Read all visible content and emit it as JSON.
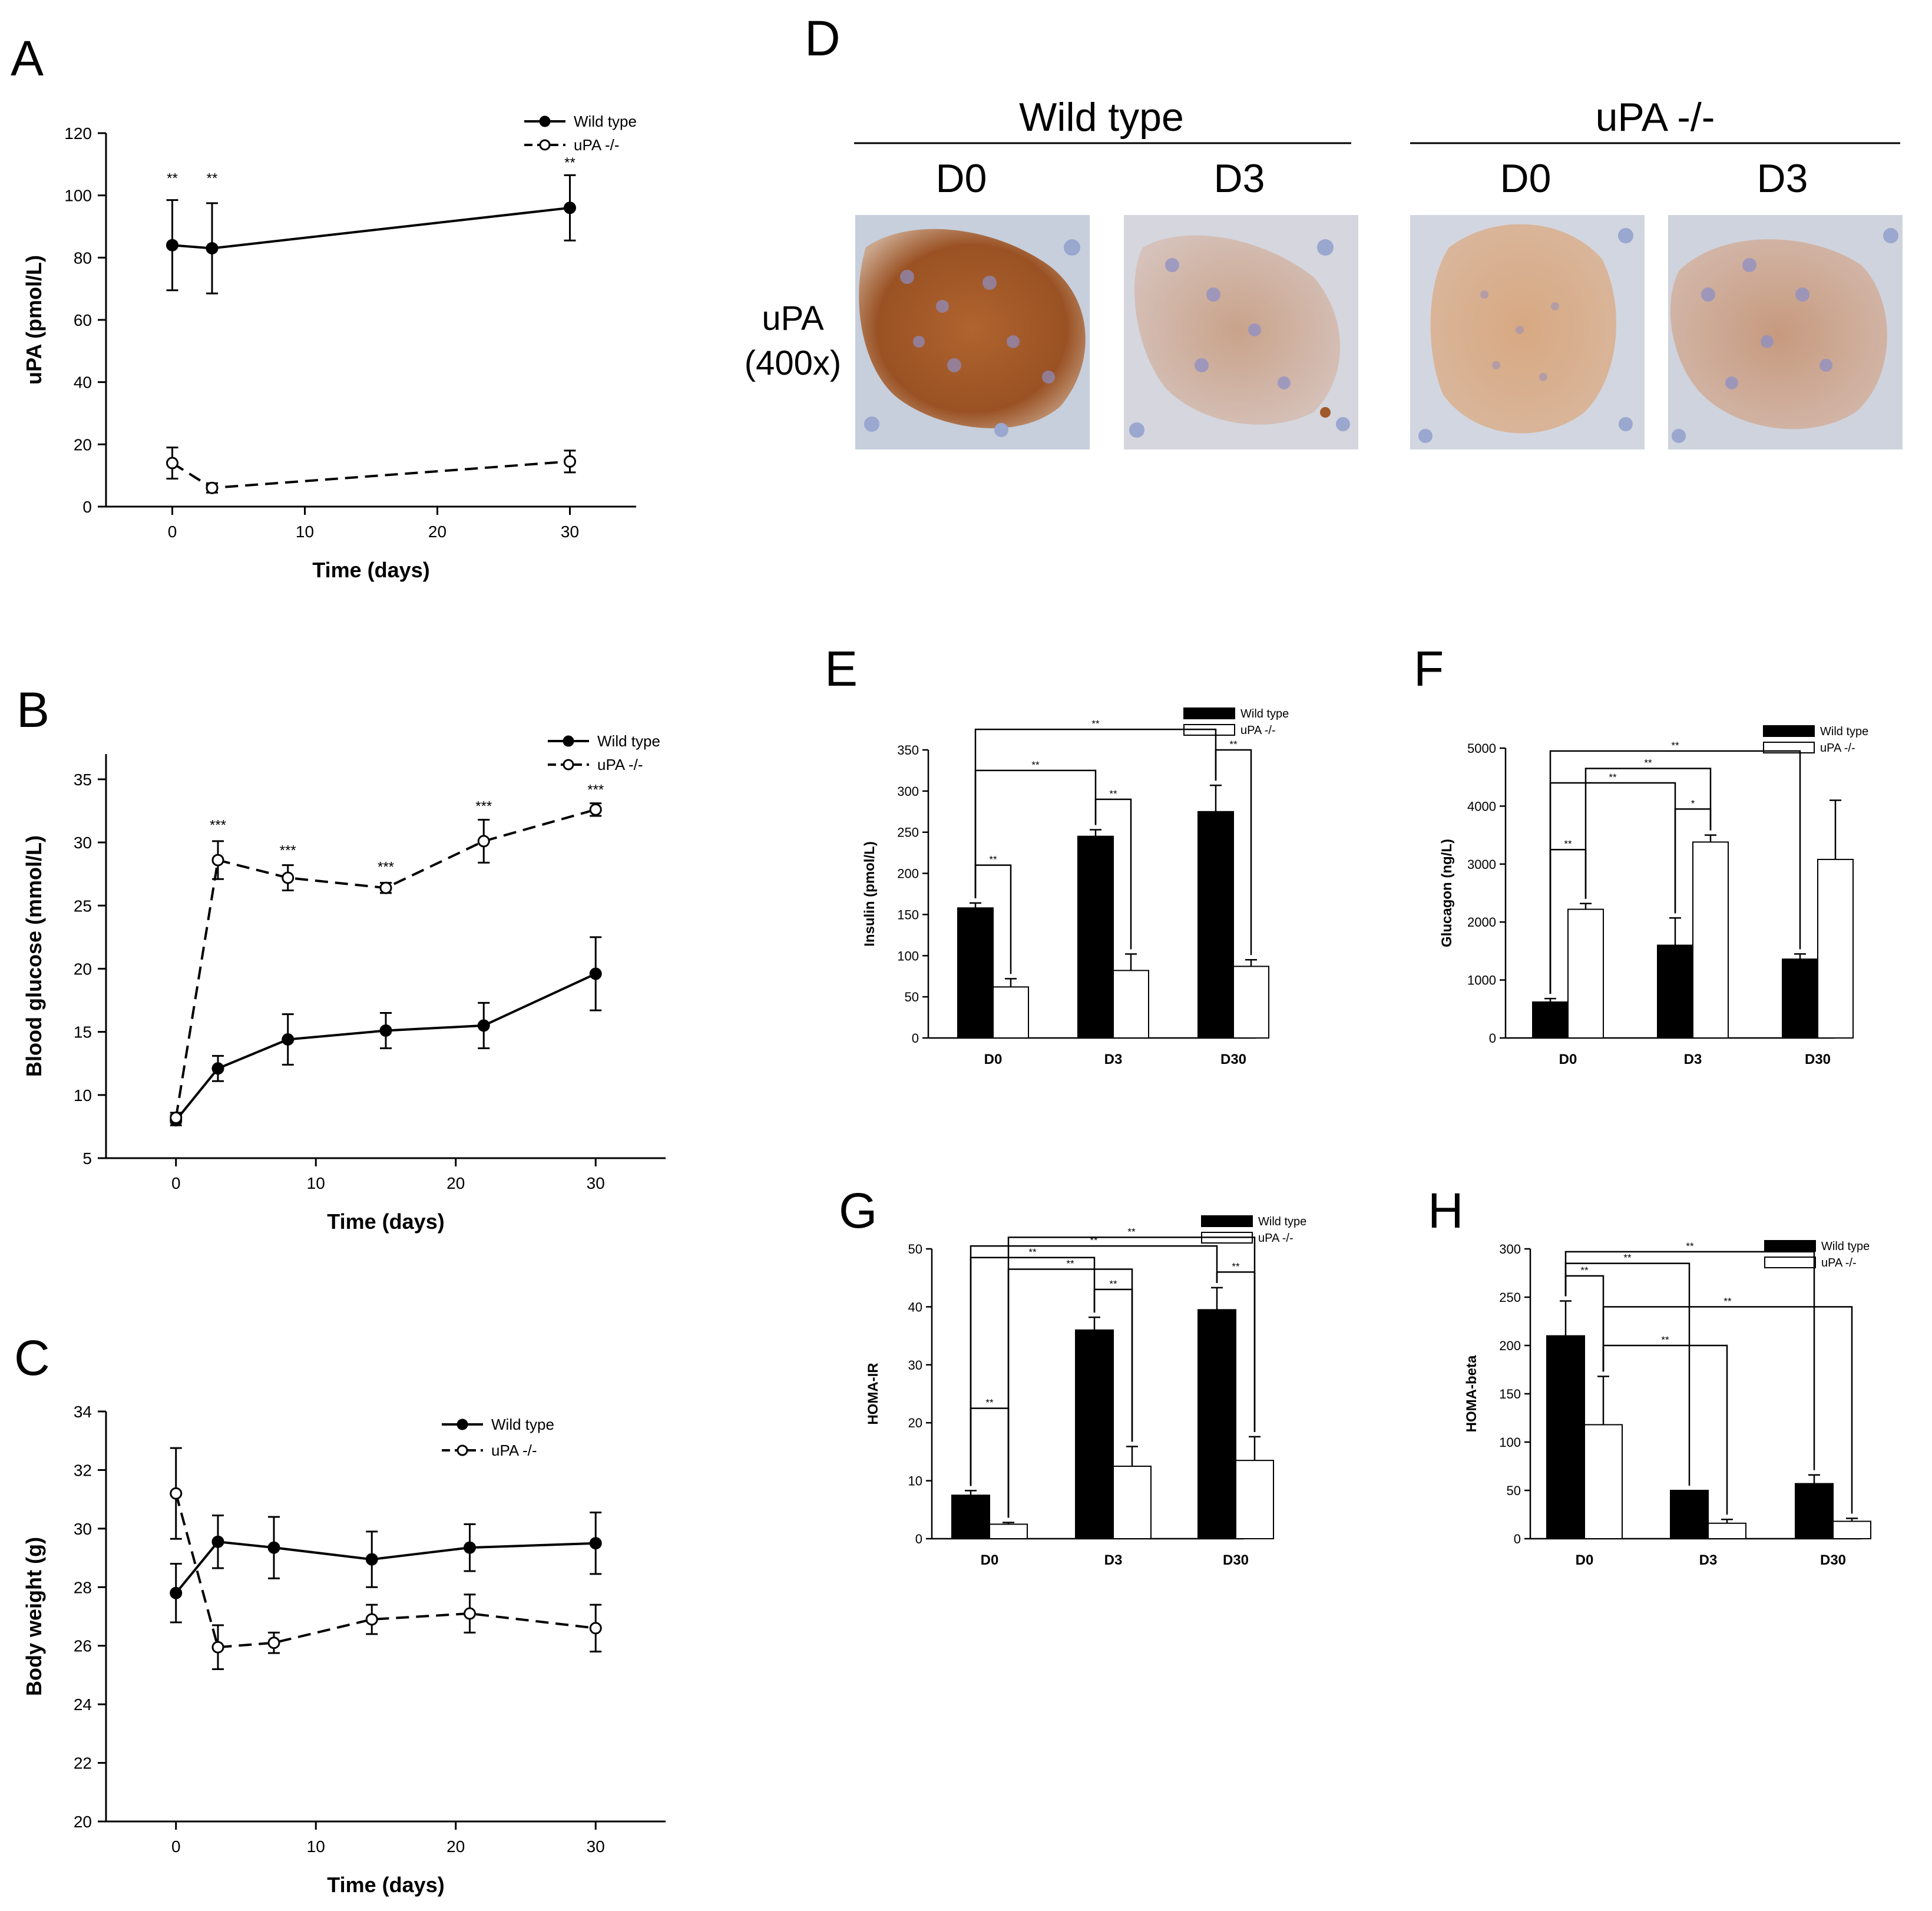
{
  "panels": {
    "A": "A",
    "B": "B",
    "C": "C",
    "D": "D",
    "E": "E",
    "F": "F",
    "G": "G",
    "H": "H"
  },
  "legend": {
    "wild": "Wild type",
    "upa": "uPA -/-"
  },
  "histology": {
    "group_wild": "Wild type",
    "group_upa": "uPA -/-",
    "d0": "D0",
    "d3": "D3",
    "row_label_1": "uPA",
    "row_label_2": "(400x)"
  },
  "colors": {
    "ink": "#000000",
    "stain_brown": "#a0582b",
    "stain_blue": "#9aa7cf",
    "background": "#ffffff"
  },
  "chart_data": [
    {
      "id": "A",
      "type": "line",
      "title": "",
      "xlabel": "Time (days)",
      "ylabel": "uPA (pmol/L)",
      "xlim": [
        -5,
        35
      ],
      "ylim": [
        0,
        120
      ],
      "xticks": [
        0,
        10,
        20,
        30
      ],
      "yticks": [
        0,
        20,
        40,
        60,
        80,
        100,
        120
      ],
      "legend_position": "top-right",
      "series": [
        {
          "name": "Wild type",
          "x": [
            0,
            3,
            30
          ],
          "y": [
            84,
            83,
            96
          ],
          "err": [
            14.5,
            14.5,
            10.5
          ],
          "style": "solid-filled"
        },
        {
          "name": "uPA -/-",
          "x": [
            0,
            3,
            30
          ],
          "y": [
            14,
            6,
            14.5
          ],
          "err": [
            5,
            1.5,
            3.5
          ],
          "style": "dashed-open"
        }
      ],
      "annotations": [
        {
          "x": 0,
          "y": 104,
          "text": "**"
        },
        {
          "x": 3,
          "y": 104,
          "text": "**"
        },
        {
          "x": 30,
          "y": 109,
          "text": "**"
        }
      ]
    },
    {
      "id": "B",
      "type": "line",
      "title": "",
      "xlabel": "Time (days)",
      "ylabel": "Blood glucose (mmol/L)",
      "xlim": [
        -5,
        35
      ],
      "ylim": [
        5,
        37
      ],
      "xticks": [
        0,
        10,
        20,
        30
      ],
      "yticks": [
        5,
        10,
        15,
        20,
        25,
        30,
        35
      ],
      "legend_position": "top-right",
      "series": [
        {
          "name": "Wild type",
          "x": [
            0,
            3,
            8,
            15,
            22,
            30
          ],
          "y": [
            8,
            12.1,
            14.4,
            15.1,
            15.5,
            19.6
          ],
          "err": [
            0.4,
            1.0,
            2.0,
            1.4,
            1.8,
            2.9
          ],
          "style": "solid-filled"
        },
        {
          "name": "uPA -/-",
          "x": [
            0,
            3,
            8,
            15,
            22,
            30
          ],
          "y": [
            8.2,
            28.6,
            27.2,
            26.4,
            30.1,
            32.6
          ],
          "err": [
            0.4,
            1.5,
            1.0,
            0.4,
            1.7,
            0.5
          ],
          "style": "dashed-open"
        }
      ],
      "annotations": [
        {
          "x": 3,
          "y": 31,
          "text": "***"
        },
        {
          "x": 8,
          "y": 29,
          "text": "***"
        },
        {
          "x": 15,
          "y": 27.7,
          "text": "***"
        },
        {
          "x": 22,
          "y": 32.5,
          "text": "***"
        },
        {
          "x": 30,
          "y": 33.8,
          "text": "***"
        }
      ]
    },
    {
      "id": "C",
      "type": "line",
      "title": "",
      "xlabel": "Time (days)",
      "ylabel": "Body weight (g)",
      "xlim": [
        -5,
        35
      ],
      "ylim": [
        20,
        34
      ],
      "xticks": [
        0,
        10,
        20,
        30
      ],
      "yticks": [
        20,
        22,
        24,
        26,
        28,
        30,
        32,
        34
      ],
      "legend_position": "top-right",
      "series": [
        {
          "name": "Wild type",
          "x": [
            0,
            3,
            7,
            14,
            21,
            30
          ],
          "y": [
            27.8,
            29.55,
            29.35,
            28.95,
            29.35,
            29.5
          ],
          "err": [
            1.0,
            0.9,
            1.05,
            0.95,
            0.8,
            1.05
          ],
          "style": "solid-filled"
        },
        {
          "name": "uPA -/-",
          "x": [
            0,
            3,
            7,
            14,
            21,
            30
          ],
          "y": [
            31.2,
            25.95,
            26.1,
            26.9,
            27.1,
            26.6
          ],
          "err": [
            1.55,
            0.75,
            0.35,
            0.5,
            0.65,
            0.8
          ],
          "style": "dashed-open"
        }
      ],
      "annotations": []
    },
    {
      "id": "E",
      "type": "bar",
      "title": "",
      "xlabel": "",
      "ylabel": "Insulin (pmol/L)",
      "categories": [
        "D0",
        "D3",
        "D30"
      ],
      "ylim": [
        0,
        350
      ],
      "yticks": [
        0,
        50,
        100,
        150,
        200,
        250,
        300,
        350
      ],
      "legend_position": "top-right",
      "series": [
        {
          "name": "Wild type",
          "values": [
            158,
            245,
            275
          ],
          "err": [
            6,
            8,
            32
          ]
        },
        {
          "name": "uPA -/-",
          "values": [
            62,
            82,
            87
          ],
          "err": [
            10,
            20,
            8
          ]
        }
      ],
      "brackets": [
        {
          "a": [
            0,
            0
          ],
          "b": [
            2,
            0
          ],
          "level": 375,
          "text": "**"
        },
        {
          "a": [
            0,
            0
          ],
          "b": [
            1,
            0
          ],
          "level": 325,
          "text": "**"
        },
        {
          "a": [
            2,
            0
          ],
          "b": [
            2,
            1
          ],
          "level": 350,
          "text": "**"
        },
        {
          "a": [
            1,
            0
          ],
          "b": [
            1,
            1
          ],
          "level": 290,
          "text": "**"
        },
        {
          "a": [
            0,
            0
          ],
          "b": [
            0,
            1
          ],
          "level": 210,
          "text": "**"
        }
      ]
    },
    {
      "id": "F",
      "type": "bar",
      "title": "",
      "xlabel": "",
      "ylabel": "Glucagon (ng/L)",
      "categories": [
        "D0",
        "D3",
        "D30"
      ],
      "ylim": [
        0,
        5000
      ],
      "yticks": [
        0,
        1000,
        2000,
        3000,
        4000,
        5000
      ],
      "legend_position": "top-right",
      "series": [
        {
          "name": "Wild type",
          "values": [
            620,
            1600,
            1360
          ],
          "err": [
            60,
            470,
            90
          ]
        },
        {
          "name": "uPA -/-",
          "values": [
            2220,
            3380,
            3080
          ],
          "err": [
            100,
            120,
            1020
          ]
        }
      ],
      "brackets": [
        {
          "a": [
            0,
            0
          ],
          "b": [
            2,
            0
          ],
          "level": 4950,
          "text": "**"
        },
        {
          "a": [
            0,
            1
          ],
          "b": [
            1,
            1
          ],
          "level": 4650,
          "text": "**"
        },
        {
          "a": [
            0,
            0
          ],
          "b": [
            1,
            0
          ],
          "level": 4400,
          "text": "**"
        },
        {
          "a": [
            1,
            0
          ],
          "b": [
            1,
            1
          ],
          "level": 3950,
          "text": "*"
        },
        {
          "a": [
            0,
            0
          ],
          "b": [
            0,
            1
          ],
          "level": 3250,
          "text": "**"
        }
      ]
    },
    {
      "id": "G",
      "type": "bar",
      "title": "",
      "xlabel": "",
      "ylabel": "HOMA-IR",
      "categories": [
        "D0",
        "D3",
        "D30"
      ],
      "ylim": [
        0,
        50
      ],
      "yticks": [
        0,
        10,
        20,
        30,
        40,
        50
      ],
      "legend_position": "top-right",
      "series": [
        {
          "name": "Wild type",
          "values": [
            7.5,
            36,
            39.5
          ],
          "err": [
            0.8,
            2.2,
            3.8
          ]
        },
        {
          "name": "uPA -/-",
          "values": [
            2.5,
            12.5,
            13.5
          ],
          "err": [
            0.3,
            3.4,
            4.1
          ]
        }
      ],
      "brackets": [
        {
          "a": [
            0,
            1
          ],
          "b": [
            2,
            1
          ],
          "level": 52,
          "text": "**"
        },
        {
          "a": [
            0,
            0
          ],
          "b": [
            2,
            0
          ],
          "level": 50.5,
          "text": "**"
        },
        {
          "a": [
            0,
            0
          ],
          "b": [
            1,
            0
          ],
          "level": 48.5,
          "text": "**"
        },
        {
          "a": [
            0,
            1
          ],
          "b": [
            1,
            1
          ],
          "level": 46.5,
          "text": "**"
        },
        {
          "a": [
            2,
            0
          ],
          "b": [
            2,
            1
          ],
          "level": 46,
          "text": "**"
        },
        {
          "a": [
            1,
            0
          ],
          "b": [
            1,
            1
          ],
          "level": 43,
          "text": "**"
        },
        {
          "a": [
            0,
            0
          ],
          "b": [
            0,
            1
          ],
          "level": 22.5,
          "text": "**"
        }
      ]
    },
    {
      "id": "H",
      "type": "bar",
      "title": "",
      "xlabel": "",
      "ylabel": "HOMA-beta",
      "categories": [
        "D0",
        "D3",
        "D30"
      ],
      "ylim": [
        0,
        300
      ],
      "yticks": [
        0,
        50,
        100,
        150,
        200,
        250,
        300
      ],
      "legend_position": "top-right",
      "series": [
        {
          "name": "Wild type",
          "values": [
            210,
            50,
            57
          ],
          "err": [
            36,
            0,
            9
          ]
        },
        {
          "name": "uPA -/-",
          "values": [
            118,
            16,
            18
          ],
          "err": [
            50,
            4,
            3
          ]
        }
      ],
      "brackets": [
        {
          "a": [
            0,
            0
          ],
          "b": [
            2,
            0
          ],
          "level": 297,
          "text": "**"
        },
        {
          "a": [
            0,
            0
          ],
          "b": [
            1,
            0
          ],
          "level": 285,
          "text": "**"
        },
        {
          "a": [
            0,
            0
          ],
          "b": [
            0,
            1
          ],
          "level": 272,
          "text": "**"
        },
        {
          "a": [
            0,
            1
          ],
          "b": [
            2,
            1
          ],
          "level": 240,
          "text": "**"
        },
        {
          "a": [
            0,
            1
          ],
          "b": [
            1,
            1
          ],
          "level": 200,
          "text": "**"
        }
      ]
    }
  ]
}
